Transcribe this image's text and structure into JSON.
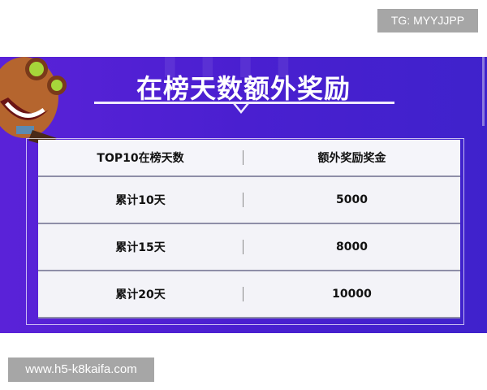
{
  "watermark_top": "TG: MYYJJPP",
  "watermark_bottom": "www.h5-k8kaifa.com",
  "banner": {
    "title": "在榜天数额外奖励",
    "accent": "#4a1fd0"
  },
  "table": {
    "headers": [
      "TOP10在榜天数",
      "额外奖励奖金"
    ],
    "rows": [
      [
        "累计10天",
        "5000"
      ],
      [
        "累计15天",
        "8000"
      ],
      [
        "累计20天",
        "10000"
      ]
    ]
  }
}
